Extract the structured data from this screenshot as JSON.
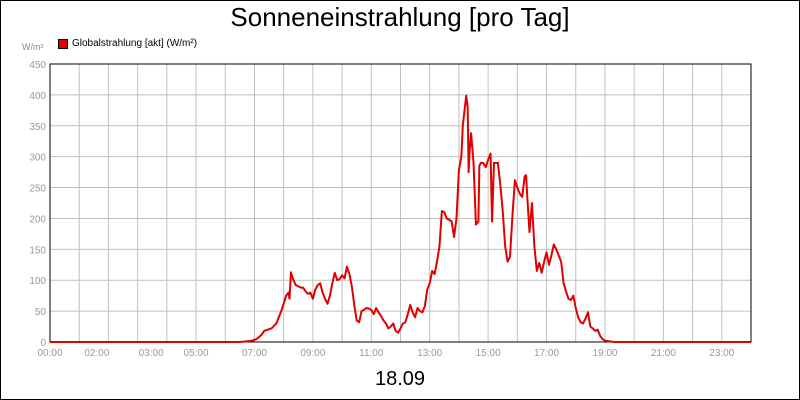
{
  "title": "Sonneneinstrahlung [pro Tag]",
  "unit_label": "W/m²",
  "legend_label": "Globalstrahlung [akt] (W/m²)",
  "date_label": "18.09",
  "colors": {
    "series": "#e00000",
    "grid": "#c0c0c0",
    "tick_text": "#999999"
  },
  "chart_data": {
    "type": "line",
    "title": "Sonneneinstrahlung [pro Tag]",
    "xlabel": "18.09",
    "ylabel": "W/m²",
    "ylim": [
      0,
      450
    ],
    "xlim": [
      "00:00",
      "24:00"
    ],
    "grid": true,
    "legend_position": "top-left",
    "x_tick_labels": [
      "00:00",
      "02:00",
      "03:00",
      "05:00",
      "07:00",
      "09:00",
      "11:00",
      "13:00",
      "15:00",
      "17:00",
      "19:00",
      "21:00",
      "23:00"
    ],
    "y_tick_labels": [
      "0",
      "50",
      "100",
      "150",
      "200",
      "250",
      "300",
      "350",
      "400",
      "450"
    ],
    "series": [
      {
        "name": "Globalstrahlung [akt] (W/m²)",
        "color": "#e00000",
        "points": [
          [
            "00:00",
            0
          ],
          [
            "06:30",
            0
          ],
          [
            "06:55",
            2
          ],
          [
            "07:05",
            5
          ],
          [
            "07:15",
            12
          ],
          [
            "07:20",
            18
          ],
          [
            "07:35",
            22
          ],
          [
            "07:45",
            30
          ],
          [
            "07:55",
            50
          ],
          [
            "08:00",
            62
          ],
          [
            "08:05",
            75
          ],
          [
            "08:10",
            80
          ],
          [
            "08:12",
            70
          ],
          [
            "08:15",
            113
          ],
          [
            "08:20",
            100
          ],
          [
            "08:25",
            92
          ],
          [
            "08:30",
            90
          ],
          [
            "08:35",
            88
          ],
          [
            "08:40",
            88
          ],
          [
            "08:45",
            82
          ],
          [
            "08:50",
            78
          ],
          [
            "08:55",
            80
          ],
          [
            "09:00",
            70
          ],
          [
            "09:05",
            85
          ],
          [
            "09:10",
            92
          ],
          [
            "09:15",
            95
          ],
          [
            "09:20",
            80
          ],
          [
            "09:25",
            70
          ],
          [
            "09:30",
            62
          ],
          [
            "09:35",
            75
          ],
          [
            "09:40",
            95
          ],
          [
            "09:45",
            112
          ],
          [
            "09:50",
            100
          ],
          [
            "09:55",
            102
          ],
          [
            "10:00",
            108
          ],
          [
            "10:05",
            103
          ],
          [
            "10:10",
            122
          ],
          [
            "10:15",
            110
          ],
          [
            "10:20",
            90
          ],
          [
            "10:25",
            60
          ],
          [
            "10:30",
            35
          ],
          [
            "10:35",
            32
          ],
          [
            "10:40",
            50
          ],
          [
            "10:45",
            52
          ],
          [
            "10:50",
            55
          ],
          [
            "10:55",
            54
          ],
          [
            "11:00",
            52
          ],
          [
            "11:05",
            45
          ],
          [
            "11:10",
            55
          ],
          [
            "11:15",
            48
          ],
          [
            "11:20",
            42
          ],
          [
            "11:25",
            35
          ],
          [
            "11:30",
            30
          ],
          [
            "11:35",
            22
          ],
          [
            "11:40",
            25
          ],
          [
            "11:45",
            30
          ],
          [
            "11:50",
            18
          ],
          [
            "11:55",
            15
          ],
          [
            "12:00",
            22
          ],
          [
            "12:05",
            30
          ],
          [
            "12:10",
            32
          ],
          [
            "12:15",
            45
          ],
          [
            "12:20",
            60
          ],
          [
            "12:25",
            48
          ],
          [
            "12:30",
            40
          ],
          [
            "12:35",
            55
          ],
          [
            "12:40",
            50
          ],
          [
            "12:45",
            48
          ],
          [
            "12:50",
            58
          ],
          [
            "12:55",
            85
          ],
          [
            "13:00",
            95
          ],
          [
            "13:05",
            115
          ],
          [
            "13:10",
            110
          ],
          [
            "13:15",
            130
          ],
          [
            "13:20",
            155
          ],
          [
            "13:25",
            212
          ],
          [
            "13:30",
            210
          ],
          [
            "13:35",
            200
          ],
          [
            "13:40",
            198
          ],
          [
            "13:45",
            195
          ],
          [
            "13:50",
            170
          ],
          [
            "13:55",
            200
          ],
          [
            "14:00",
            278
          ],
          [
            "14:05",
            300
          ],
          [
            "14:08",
            350
          ],
          [
            "14:12",
            378
          ],
          [
            "14:15",
            399
          ],
          [
            "14:18",
            380
          ],
          [
            "14:20",
            275
          ],
          [
            "14:22",
            310
          ],
          [
            "14:25",
            338
          ],
          [
            "14:30",
            290
          ],
          [
            "14:35",
            190
          ],
          [
            "14:40",
            195
          ],
          [
            "14:42",
            285
          ],
          [
            "14:45",
            290
          ],
          [
            "14:50",
            290
          ],
          [
            "14:55",
            283
          ],
          [
            "15:00",
            295
          ],
          [
            "15:05",
            305
          ],
          [
            "15:08",
            195
          ],
          [
            "15:12",
            290
          ],
          [
            "15:15",
            290
          ],
          [
            "15:20",
            290
          ],
          [
            "15:25",
            255
          ],
          [
            "15:30",
            212
          ],
          [
            "15:35",
            155
          ],
          [
            "15:40",
            130
          ],
          [
            "15:45",
            138
          ],
          [
            "15:50",
            205
          ],
          [
            "15:55",
            262
          ],
          [
            "16:00",
            250
          ],
          [
            "16:05",
            240
          ],
          [
            "16:10",
            235
          ],
          [
            "16:15",
            268
          ],
          [
            "16:18",
            270
          ],
          [
            "16:20",
            240
          ],
          [
            "16:25",
            178
          ],
          [
            "16:30",
            225
          ],
          [
            "16:35",
            155
          ],
          [
            "16:40",
            115
          ],
          [
            "16:45",
            128
          ],
          [
            "16:50",
            112
          ],
          [
            "16:55",
            130
          ],
          [
            "17:00",
            145
          ],
          [
            "17:05",
            125
          ],
          [
            "17:10",
            140
          ],
          [
            "17:15",
            158
          ],
          [
            "17:20",
            150
          ],
          [
            "17:25",
            140
          ],
          [
            "17:30",
            130
          ],
          [
            "17:35",
            95
          ],
          [
            "17:40",
            82
          ],
          [
            "17:45",
            70
          ],
          [
            "17:50",
            68
          ],
          [
            "17:55",
            75
          ],
          [
            "18:00",
            55
          ],
          [
            "18:05",
            40
          ],
          [
            "18:10",
            32
          ],
          [
            "18:15",
            30
          ],
          [
            "18:20",
            38
          ],
          [
            "18:25",
            48
          ],
          [
            "18:30",
            25
          ],
          [
            "18:35",
            22
          ],
          [
            "18:40",
            18
          ],
          [
            "18:45",
            20
          ],
          [
            "18:50",
            10
          ],
          [
            "18:55",
            5
          ],
          [
            "19:00",
            2
          ],
          [
            "19:10",
            1
          ],
          [
            "19:20",
            0
          ],
          [
            "24:00",
            0
          ]
        ]
      }
    ]
  }
}
